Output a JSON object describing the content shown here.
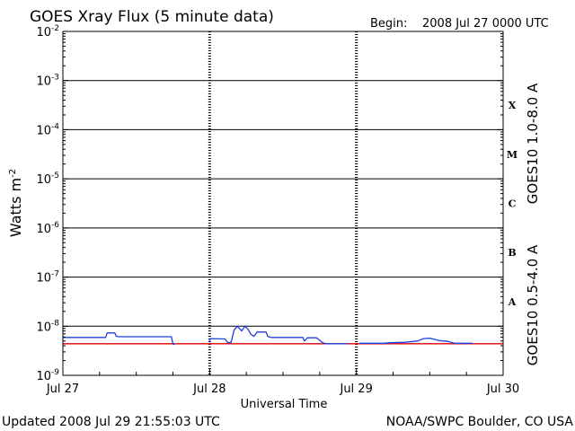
{
  "header": {
    "title": "GOES Xray Flux (5 minute data)",
    "begin_label": "Begin:",
    "begin_value": "2008 Jul 27 0000 UTC"
  },
  "footer": {
    "updated": "Updated 2008 Jul 29 21:55:03 UTC",
    "source": "NOAA/SWPC Boulder, CO USA"
  },
  "chart_data": {
    "type": "line",
    "title": "GOES Xray Flux (5 minute data)",
    "xlabel": "Universal Time",
    "ylabel": "Watts m",
    "ylabel_sup": "-2",
    "y_scale": "log",
    "ylim": [
      1e-09,
      0.01
    ],
    "xlim": [
      "2008-07-27 00:00",
      "2008-07-30 00:00"
    ],
    "grid": "horizontal at each decade; dashed verticals at day boundaries",
    "x_ticks": [
      {
        "x": "2008-07-27 00:00",
        "label": "Jul 27"
      },
      {
        "x": "2008-07-28 00:00",
        "label": "Jul 28"
      },
      {
        "x": "2008-07-29 00:00",
        "label": "Jul 29"
      },
      {
        "x": "2008-07-30 00:00",
        "label": "Jul 30"
      }
    ],
    "y_ticks": [
      {
        "exp": -2,
        "base": "10",
        "sup": "-2"
      },
      {
        "exp": -3,
        "base": "10",
        "sup": "-3"
      },
      {
        "exp": -4,
        "base": "10",
        "sup": "-4"
      },
      {
        "exp": -5,
        "base": "10",
        "sup": "-5"
      },
      {
        "exp": -6,
        "base": "10",
        "sup": "-6"
      },
      {
        "exp": -7,
        "base": "10",
        "sup": "-7"
      },
      {
        "exp": -8,
        "base": "10",
        "sup": "-8"
      },
      {
        "exp": -9,
        "base": "10",
        "sup": "-9"
      }
    ],
    "flare_classes": [
      {
        "label": "X",
        "exp": -3.5
      },
      {
        "label": "M",
        "exp": -4.5
      },
      {
        "label": "C",
        "exp": -5.5
      },
      {
        "label": "B",
        "exp": -6.5
      },
      {
        "label": "A",
        "exp": -7.5
      }
    ],
    "series": [
      {
        "name": "GOES10 1.0-8.0 A",
        "color": "#dd0000",
        "segments": [
          [
            [
              "2008-07-27 00:00",
              4.4e-09
            ],
            [
              "2008-07-29 23:55",
              4.4e-09
            ]
          ]
        ]
      },
      {
        "name": "GOES10 0.5-4.0 A",
        "color": "#1f3fdd",
        "segments": [
          [
            [
              "2008-07-27 00:00",
              5.9e-09
            ],
            [
              "2008-07-27 07:00",
              5.9e-09
            ],
            [
              "2008-07-27 07:15",
              7.3e-09
            ],
            [
              "2008-07-27 08:30",
              7.3e-09
            ],
            [
              "2008-07-27 08:45",
              6.2e-09
            ],
            [
              "2008-07-27 09:15",
              6.1e-09
            ],
            [
              "2008-07-27 17:45",
              6.1e-09
            ],
            [
              "2008-07-27 18:00",
              4.3e-09
            ],
            [
              "2008-07-27 18:15",
              4.3e-09
            ]
          ],
          [
            [
              "2008-07-27 23:55",
              4.7e-09
            ],
            [
              "2008-07-28 00:05",
              5.6e-09
            ],
            [
              "2008-07-28 02:30",
              5.5e-09
            ],
            [
              "2008-07-28 03:00",
              4.6e-09
            ],
            [
              "2008-07-28 03:30",
              4.7e-09
            ],
            [
              "2008-07-28 04:00",
              8.3e-09
            ],
            [
              "2008-07-28 04:30",
              1e-08
            ],
            [
              "2008-07-28 05:15",
              8e-09
            ],
            [
              "2008-07-28 05:45",
              1e-08
            ],
            [
              "2008-07-28 06:15",
              8.8e-09
            ],
            [
              "2008-07-28 06:45",
              6.8e-09
            ],
            [
              "2008-07-28 07:15",
              6.2e-09
            ],
            [
              "2008-07-28 07:45",
              7.6e-09
            ],
            [
              "2008-07-28 09:15",
              7.6e-09
            ],
            [
              "2008-07-28 09:30",
              6.2e-09
            ],
            [
              "2008-07-28 10:00",
              5.9e-09
            ],
            [
              "2008-07-28 15:15",
              5.9e-09
            ],
            [
              "2008-07-28 15:30",
              5e-09
            ],
            [
              "2008-07-28 16:00",
              5.8e-09
            ],
            [
              "2008-07-28 17:30",
              5.8e-09
            ],
            [
              "2008-07-28 18:30",
              4.6e-09
            ],
            [
              "2008-07-28 19:00",
              4.4e-09
            ],
            [
              "2008-07-28 22:30",
              4.4e-09
            ]
          ],
          [
            [
              "2008-07-29 00:30",
              4.5e-09
            ],
            [
              "2008-07-29 04:30",
              4.5e-09
            ],
            [
              "2008-07-29 05:30",
              4.6e-09
            ],
            [
              "2008-07-29 08:00",
              4.7e-09
            ],
            [
              "2008-07-29 10:00",
              5e-09
            ],
            [
              "2008-07-29 11:00",
              5.6e-09
            ],
            [
              "2008-07-29 12:00",
              5.7e-09
            ],
            [
              "2008-07-29 13:30",
              5.1e-09
            ],
            [
              "2008-07-29 15:00",
              4.9e-09
            ],
            [
              "2008-07-29 16:00",
              4.5e-09
            ],
            [
              "2008-07-29 19:00",
              4.5e-09
            ]
          ]
        ]
      }
    ]
  }
}
